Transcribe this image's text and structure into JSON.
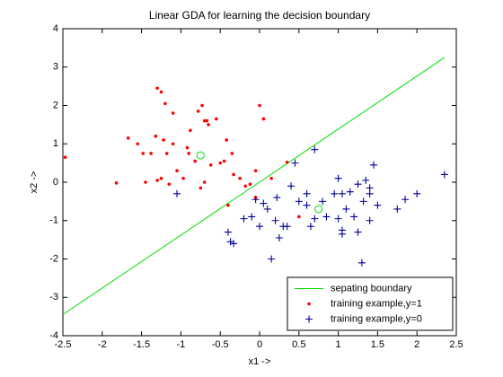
{
  "chart_data": {
    "type": "scatter",
    "title": "Linear GDA for learning the decision boundary",
    "x_label": "x1 ->",
    "y_label": "x2 ->",
    "xlim": [
      -2.5,
      2.5
    ],
    "ylim": [
      -4,
      4
    ],
    "xticks": [
      -2.5,
      -2,
      -1.5,
      -1,
      -0.5,
      0,
      0.5,
      1,
      1.5,
      2,
      2.5
    ],
    "yticks": [
      -4,
      -3,
      -2,
      -1,
      0,
      1,
      2,
      3,
      4
    ],
    "grid": false,
    "legend": "lower right",
    "series": [
      {
        "name": "sepating boundary",
        "color": "#00dd00",
        "kind": "line",
        "x": [
          -2.5,
          2.35
        ],
        "values": [
          -3.45,
          3.25
        ]
      },
      {
        "name": "training example,y=1",
        "color": "#ff0000",
        "kind": "dot",
        "x": [
          -2.47,
          -1.82,
          -1.67,
          -1.55,
          -1.48,
          -1.45,
          -1.38,
          -1.32,
          -1.3,
          -1.25,
          -1.2,
          -1.3,
          -1.25,
          -1.18,
          -1.15,
          -1.22,
          -1.1,
          -1.05,
          -1.1,
          -0.97,
          -0.92,
          -0.9,
          -0.88,
          -0.82,
          -0.78,
          -0.73,
          -0.7,
          -0.67,
          -0.65,
          -0.62,
          -0.55,
          -0.5,
          -0.45,
          -0.42,
          -0.35,
          -0.33,
          -0.25,
          -0.18,
          -0.12,
          -0.05,
          0.0,
          0.05,
          -0.05,
          0.15,
          0.35,
          0.5,
          -0.7,
          -0.4,
          -0.75
        ],
        "values": [
          0.65,
          -0.02,
          1.15,
          1.0,
          0.75,
          0.0,
          0.75,
          1.2,
          2.45,
          2.35,
          2.05,
          0.05,
          0.1,
          0.75,
          -0.05,
          1.1,
          1.0,
          0.3,
          1.8,
          0.1,
          0.9,
          0.75,
          1.35,
          0.55,
          1.85,
          2.0,
          1.6,
          1.6,
          1.5,
          0.45,
          1.65,
          0.5,
          0.55,
          1.1,
          0.75,
          0.2,
          0.1,
          -0.1,
          -0.05,
          0.3,
          2.0,
          1.65,
          -0.4,
          0.1,
          0.52,
          -0.9,
          0.0,
          -0.6,
          -0.15
        ]
      },
      {
        "name": "training example,y=0",
        "color": "#000099",
        "kind": "plus",
        "x": [
          -1.05,
          -0.4,
          -0.37,
          -0.33,
          -0.2,
          -0.1,
          -0.05,
          0.0,
          0.1,
          0.15,
          0.2,
          0.22,
          0.25,
          0.3,
          0.35,
          0.4,
          0.45,
          0.5,
          0.6,
          0.6,
          0.7,
          0.7,
          0.8,
          0.85,
          0.95,
          1.0,
          1.0,
          1.05,
          1.05,
          1.1,
          1.15,
          1.2,
          1.25,
          1.3,
          1.32,
          1.35,
          1.4,
          1.4,
          1.45,
          1.5,
          1.75,
          1.85,
          2.0,
          2.35,
          0.05,
          0.65,
          1.05,
          1.25,
          1.4
        ],
        "values": [
          -0.3,
          -1.3,
          -1.55,
          -1.6,
          -0.95,
          -0.9,
          -0.45,
          -1.15,
          -0.7,
          -2.0,
          -1.0,
          -0.4,
          -1.45,
          -1.15,
          -1.15,
          -0.1,
          0.5,
          -0.5,
          -0.6,
          -0.3,
          -0.95,
          0.85,
          -0.5,
          -0.9,
          -0.3,
          0.1,
          -0.95,
          -1.25,
          -1.35,
          -0.7,
          -0.25,
          -0.9,
          -1.3,
          -2.1,
          -0.5,
          0.05,
          -0.3,
          -1.0,
          0.45,
          -0.6,
          -0.7,
          -0.45,
          -0.3,
          0.2,
          -0.55,
          -1.15,
          -0.3,
          -0.05,
          -0.15
        ]
      },
      {
        "color": "#00dd00",
        "kind": "circle",
        "x": [
          -0.75,
          0.75
        ],
        "values": [
          0.7,
          -0.7
        ]
      }
    ]
  }
}
